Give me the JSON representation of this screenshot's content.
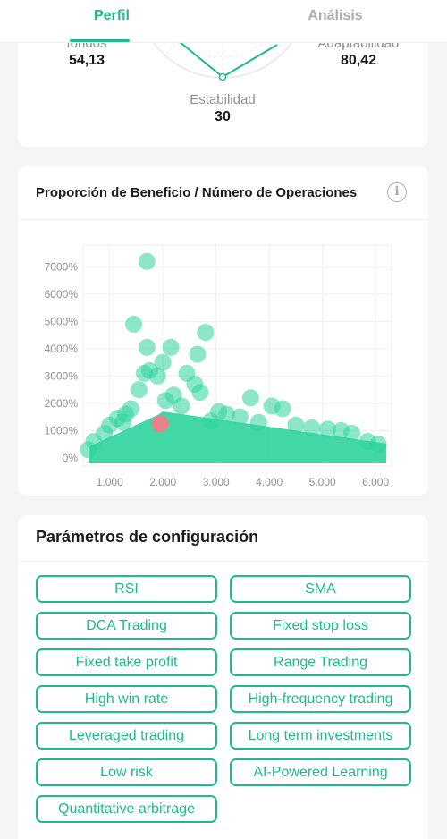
{
  "tabs": [
    {
      "label": "Perfil",
      "active": true
    },
    {
      "label": "Análisis",
      "active": false
    }
  ],
  "radar": {
    "left": {
      "label": "fondos",
      "value": "54,13"
    },
    "right": {
      "label": "Adaptabilidad",
      "value": "80,42"
    },
    "bottom": {
      "label": "Estabilidad",
      "value": "30"
    }
  },
  "chart": {
    "title": "Proporción de Beneficio / Número de Operaciones",
    "info_icon": "info-icon"
  },
  "chart_data": {
    "type": "scatter",
    "title": "Proporción de Beneficio / Número de Operaciones",
    "xlabel": "",
    "ylabel": "",
    "xlim": [
      500,
      6300
    ],
    "ylim": [
      -300,
      7800
    ],
    "x_ticks": [
      "1.000",
      "2.000",
      "3.000",
      "4.000",
      "5.000",
      "6.000"
    ],
    "y_ticks": [
      "0%",
      "1000%",
      "2000%",
      "3000%",
      "4000%",
      "5000%",
      "6000%",
      "7000%"
    ],
    "grid": true,
    "series": [
      {
        "color": "#2ed39c",
        "points": [
          [
            1700,
            7200
          ],
          [
            1450,
            4900
          ],
          [
            1700,
            4050
          ],
          [
            2150,
            4050
          ],
          [
            2800,
            4600
          ],
          [
            2650,
            3800
          ],
          [
            1750,
            3200
          ],
          [
            1650,
            3100
          ],
          [
            1900,
            3000
          ],
          [
            2000,
            3500
          ],
          [
            2450,
            3100
          ],
          [
            2600,
            2700
          ],
          [
            2700,
            2400
          ],
          [
            3650,
            2200
          ],
          [
            4050,
            1900
          ],
          [
            4250,
            1800
          ],
          [
            3200,
            1600
          ],
          [
            3450,
            1500
          ],
          [
            2200,
            2300
          ],
          [
            1550,
            2500
          ],
          [
            1400,
            1800
          ],
          [
            1300,
            1600
          ],
          [
            1150,
            1450
          ],
          [
            2900,
            1350
          ],
          [
            3800,
            1300
          ],
          [
            4500,
            1200
          ],
          [
            4800,
            1100
          ],
          [
            5100,
            1050
          ],
          [
            5350,
            1000
          ],
          [
            5550,
            900
          ],
          [
            5850,
            600
          ],
          [
            6050,
            500
          ],
          [
            900,
            900
          ],
          [
            700,
            600
          ],
          [
            600,
            300
          ],
          [
            1000,
            1200
          ],
          [
            1250,
            1300
          ],
          [
            2050,
            2100
          ],
          [
            2350,
            1900
          ],
          [
            3050,
            1700
          ]
        ]
      },
      {
        "color": "#f07d86",
        "points": [
          [
            1950,
            1250
          ]
        ]
      }
    ]
  },
  "config": {
    "title": "Parámetros de configuración",
    "tags": [
      "RSI",
      "SMA",
      "DCA Trading",
      "Fixed stop loss",
      "Fixed take profit",
      "Range Trading",
      "High win rate",
      "High-frequency trading",
      "Leveraged trading",
      "Long term investments",
      "Low risk",
      "AI-Powered Learning",
      "Quantitative arbitrage"
    ]
  }
}
